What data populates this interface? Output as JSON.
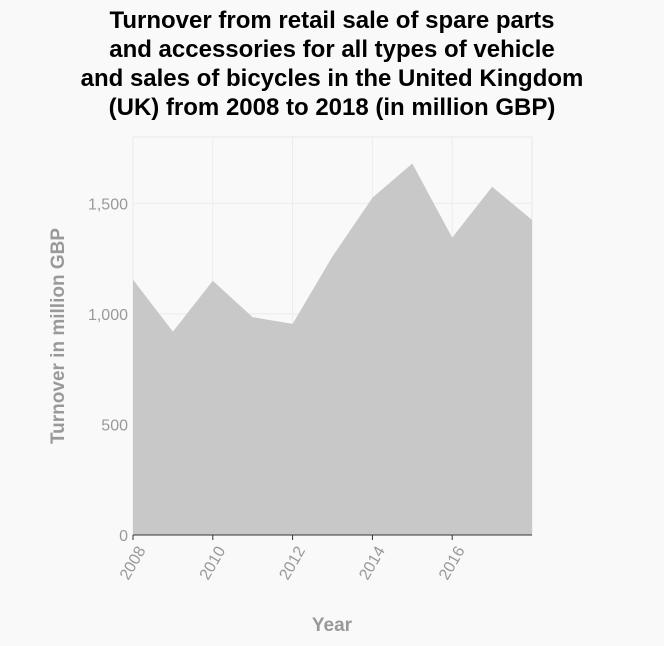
{
  "chart_data": {
    "type": "area",
    "title_lines": [
      "Turnover from retail sale of spare parts",
      "and accessories for all types of vehicle",
      "and sales of bicycles in the United Kingdom",
      "(UK) from 2008 to 2018 (in million GBP)"
    ],
    "xlabel": "Year",
    "ylabel": "Turnover in million GBP",
    "x": [
      2008,
      2009,
      2010,
      2011,
      2012,
      2013,
      2014,
      2015,
      2016,
      2017,
      2018
    ],
    "values": [
      1155,
      920,
      1150,
      985,
      955,
      1260,
      1525,
      1680,
      1345,
      1575,
      1425
    ],
    "xlim": [
      2008,
      2018
    ],
    "ylim": [
      0,
      1800
    ],
    "x_ticks": [
      2008,
      2010,
      2012,
      2014,
      2016
    ],
    "x_tick_labels": [
      "2008",
      "2010",
      "2012",
      "2014",
      "2016"
    ],
    "y_ticks": [
      0,
      500,
      1000,
      1500
    ],
    "y_tick_labels": [
      "0",
      "500",
      "1,000",
      "1,500"
    ],
    "grid": true,
    "fill_color": "#c8c8c8",
    "background_color": "#f9f9f9"
  }
}
